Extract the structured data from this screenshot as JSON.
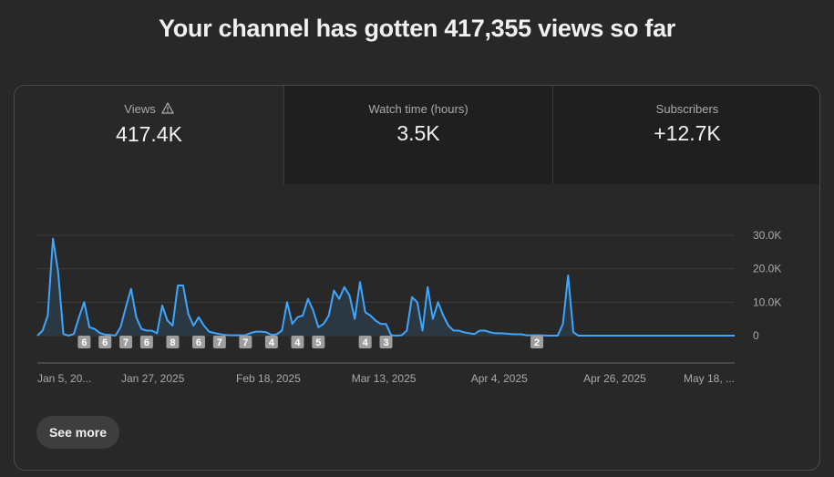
{
  "headline": "Your channel has gotten 417,355 views so far",
  "tabs": [
    {
      "label": "Views",
      "value": "417.4K",
      "icon": "warning-icon"
    },
    {
      "label": "Watch time (hours)",
      "value": "3.5K"
    },
    {
      "label": "Subscribers",
      "value": "+12.7K"
    }
  ],
  "see_more_label": "See more",
  "colors": {
    "line": "#3ea6ff",
    "area": "#2b3a45",
    "background": "#282828"
  },
  "chart_data": {
    "type": "area",
    "title": "",
    "xlabel": "",
    "ylabel": "",
    "y_tick_labels": [
      "0",
      "10.0K",
      "20.0K",
      "30.0K"
    ],
    "ylim": [
      0,
      30000
    ],
    "x_tick_labels": [
      "Jan 5, 20...",
      "Jan 27, 2025",
      "Feb 18, 2025",
      "Mar 13, 2025",
      "Apr 4, 2025",
      "Apr 26, 2025",
      "May 18, ..."
    ],
    "grid": true,
    "series": [
      {
        "x_start": "2025-01-05",
        "values": [
          0,
          1500,
          6000,
          29000,
          19000,
          500,
          0,
          500,
          5500,
          10000,
          2500,
          2000,
          800,
          300,
          200,
          0,
          2500,
          8500,
          14000,
          5500,
          2000,
          1500,
          1500,
          700,
          9000,
          4500,
          3000,
          15000,
          15000,
          6500,
          3000,
          5500,
          3000,
          1200,
          800,
          500,
          200,
          100,
          100,
          100,
          100,
          800,
          1200,
          1200,
          1000,
          200,
          400,
          1500,
          10000,
          3500,
          5500,
          6000,
          11000,
          7500,
          2500,
          3500,
          6000,
          13500,
          11000,
          14500,
          12000,
          5000,
          16000,
          7000,
          6000,
          4500,
          3500,
          3500,
          100,
          0,
          100,
          1500,
          11500,
          10000,
          1500,
          14500,
          5000,
          10000,
          6000,
          3000,
          1500,
          1500,
          1000,
          700,
          500,
          1500,
          1500,
          1000,
          700,
          700,
          600,
          500,
          400,
          400,
          100,
          100,
          100,
          100,
          0,
          0,
          0,
          3500,
          18000,
          1000,
          0,
          0,
          0,
          0,
          0,
          0,
          0,
          0,
          0,
          0,
          0,
          0,
          0,
          0,
          0,
          0,
          0,
          0,
          0,
          0,
          0,
          0,
          0,
          0,
          0,
          0,
          0,
          0,
          0,
          0,
          0
        ]
      }
    ],
    "annotations": [
      {
        "date": "2025-01-14",
        "label": "6"
      },
      {
        "date": "2025-01-18",
        "label": "6"
      },
      {
        "date": "2025-01-22",
        "label": "7"
      },
      {
        "date": "2025-01-26",
        "label": "6"
      },
      {
        "date": "2025-01-31",
        "label": "8"
      },
      {
        "date": "2025-02-05",
        "label": "6"
      },
      {
        "date": "2025-02-09",
        "label": "7"
      },
      {
        "date": "2025-02-14",
        "label": "7"
      },
      {
        "date": "2025-02-19",
        "label": "4"
      },
      {
        "date": "2025-02-24",
        "label": "4"
      },
      {
        "date": "2025-02-28",
        "label": "5"
      },
      {
        "date": "2025-03-09",
        "label": "4"
      },
      {
        "date": "2025-03-13",
        "label": "3"
      },
      {
        "date": "2025-04-11",
        "label": "2"
      }
    ]
  }
}
